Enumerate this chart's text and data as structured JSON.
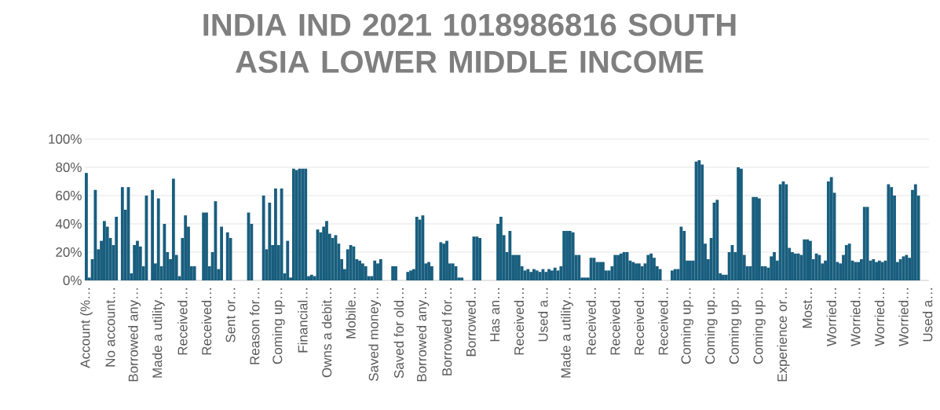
{
  "chart_data": {
    "type": "bar",
    "title": "INDIA IND 2021 1018986816 SOUTH ASIA LOWER MIDDLE INCOME",
    "color": "#195e7e",
    "grid": "y",
    "ylim": [
      0,
      100
    ],
    "yticks": [
      {
        "value": 0,
        "label": "0%"
      },
      {
        "value": 20,
        "label": "20%"
      },
      {
        "value": 40,
        "label": "40%"
      },
      {
        "value": 60,
        "label": "60%"
      },
      {
        "value": 80,
        "label": "80%"
      },
      {
        "value": 100,
        "label": "100%"
      }
    ],
    "categories": [
      "Account (%…",
      null,
      null,
      null,
      null,
      null,
      null,
      null,
      "No account…",
      null,
      null,
      null,
      null,
      null,
      null,
      null,
      "Borrowed any…",
      null,
      null,
      null,
      null,
      null,
      null,
      null,
      "Made a utility…",
      null,
      null,
      null,
      null,
      null,
      null,
      null,
      "Received…",
      null,
      null,
      null,
      null,
      null,
      null,
      null,
      "Received…",
      null,
      null,
      null,
      null,
      null,
      null,
      null,
      "Sent or…",
      null,
      null,
      null,
      null,
      null,
      null,
      null,
      "Reason for…",
      null,
      null,
      null,
      null,
      null,
      null,
      null,
      "Coming up…",
      null,
      null,
      null,
      null,
      null,
      null,
      null,
      "Financial…",
      null,
      null,
      null,
      null,
      null,
      null,
      null,
      "Owns a debit…",
      null,
      null,
      null,
      null,
      null,
      null,
      null,
      "Mobile…",
      null,
      null,
      null,
      null,
      null,
      null,
      null,
      "Saved money…",
      null,
      null,
      null,
      null,
      null,
      null,
      null,
      "Saved for old…",
      null,
      null,
      null,
      null,
      null,
      null,
      null,
      "Borrowed any…",
      null,
      null,
      null,
      null,
      null,
      null,
      null,
      "Borrowed for…",
      null,
      null,
      null,
      null,
      null,
      null,
      null,
      "Borrowed…",
      null,
      null,
      null,
      null,
      null,
      null,
      null,
      "Has an…",
      null,
      null,
      null,
      null,
      null,
      null,
      null,
      "Received…",
      null,
      null,
      null,
      null,
      null,
      null,
      null,
      "Used a…",
      null,
      null,
      null,
      null,
      null,
      null,
      null,
      "Made a utility…",
      null,
      null,
      null,
      null,
      null,
      null,
      null,
      "Received…",
      null,
      null,
      null,
      null,
      null,
      null,
      null,
      "Received…",
      null,
      null,
      null,
      null,
      null,
      null,
      null,
      "Received…",
      null,
      null,
      null,
      null,
      null,
      null,
      null,
      "Received…",
      null,
      null,
      null,
      null,
      null,
      null,
      null,
      "Coming up…",
      null,
      null,
      null,
      null,
      null,
      null,
      null,
      "Coming up…",
      null,
      null,
      null,
      null,
      null,
      null,
      null,
      "Coming up…",
      null,
      null,
      null,
      null,
      null,
      null,
      null,
      "Coming up…",
      null,
      null,
      null,
      null,
      null,
      null,
      null,
      "Experience or…",
      null,
      null,
      null,
      null,
      null,
      null,
      null,
      "Most…",
      null,
      null,
      null,
      null,
      null,
      null,
      null,
      "Worried…",
      null,
      null,
      null,
      null,
      null,
      null,
      null,
      "Worried…",
      null,
      null,
      null,
      null,
      null,
      null,
      null,
      "Worried…",
      null,
      null,
      null,
      null,
      null,
      null,
      null,
      "Worried…",
      null,
      null,
      null,
      null,
      null,
      null,
      null,
      "Used a…"
    ],
    "values": [
      76,
      2,
      15,
      64,
      22,
      28,
      42,
      38,
      30,
      25,
      45,
      null,
      66,
      50,
      66,
      5,
      25,
      28,
      24,
      10,
      60,
      null,
      64,
      12,
      58,
      10,
      40,
      20,
      15,
      72,
      18,
      3,
      30,
      46,
      38,
      10,
      10,
      null,
      null,
      48,
      48,
      10,
      20,
      56,
      8,
      38,
      null,
      34,
      30,
      null,
      null,
      null,
      null,
      null,
      48,
      40,
      null,
      null,
      null,
      60,
      22,
      55,
      25,
      65,
      25,
      65,
      5,
      28,
      2,
      79,
      78,
      79,
      79,
      79,
      3,
      4,
      3,
      36,
      34,
      38,
      42,
      33,
      30,
      32,
      26,
      15,
      8,
      22,
      25,
      24,
      15,
      14,
      12,
      10,
      3,
      3,
      14,
      12,
      15,
      null,
      null,
      null,
      10,
      10,
      null,
      null,
      null,
      6,
      7,
      8,
      45,
      43,
      46,
      12,
      13,
      10,
      null,
      null,
      27,
      26,
      28,
      12,
      12,
      10,
      2,
      2,
      null,
      null,
      null,
      31,
      31,
      30,
      null,
      null,
      null,
      null,
      null,
      40,
      45,
      32,
      20,
      35,
      18,
      18,
      18,
      10,
      7,
      8,
      6,
      8,
      7,
      6,
      8,
      6,
      8,
      7,
      9,
      7,
      10,
      35,
      35,
      35,
      34,
      18,
      18,
      2,
      2,
      2,
      16,
      16,
      13,
      13,
      13,
      7,
      7,
      10,
      18,
      18,
      19,
      20,
      20,
      14,
      13,
      12,
      12,
      10,
      12,
      18,
      19,
      16,
      10,
      8,
      null,
      null,
      null,
      7,
      8,
      8,
      38,
      35,
      14,
      14,
      14,
      84,
      85,
      82,
      26,
      15,
      30,
      55,
      57,
      5,
      4,
      4,
      20,
      25,
      20,
      80,
      79,
      18,
      10,
      10,
      59,
      59,
      58,
      10,
      10,
      9,
      17,
      20,
      14,
      68,
      70,
      68,
      23,
      20,
      19,
      19,
      18,
      29,
      29,
      28,
      15,
      19,
      18,
      12,
      14,
      70,
      73,
      62,
      13,
      12,
      18,
      25,
      26,
      14,
      13,
      13,
      15,
      52,
      52,
      14,
      15,
      13,
      14,
      13,
      14,
      68,
      66,
      60,
      13,
      15,
      17,
      18,
      16,
      64,
      68,
      60,
      null,
      null,
      null
    ]
  }
}
